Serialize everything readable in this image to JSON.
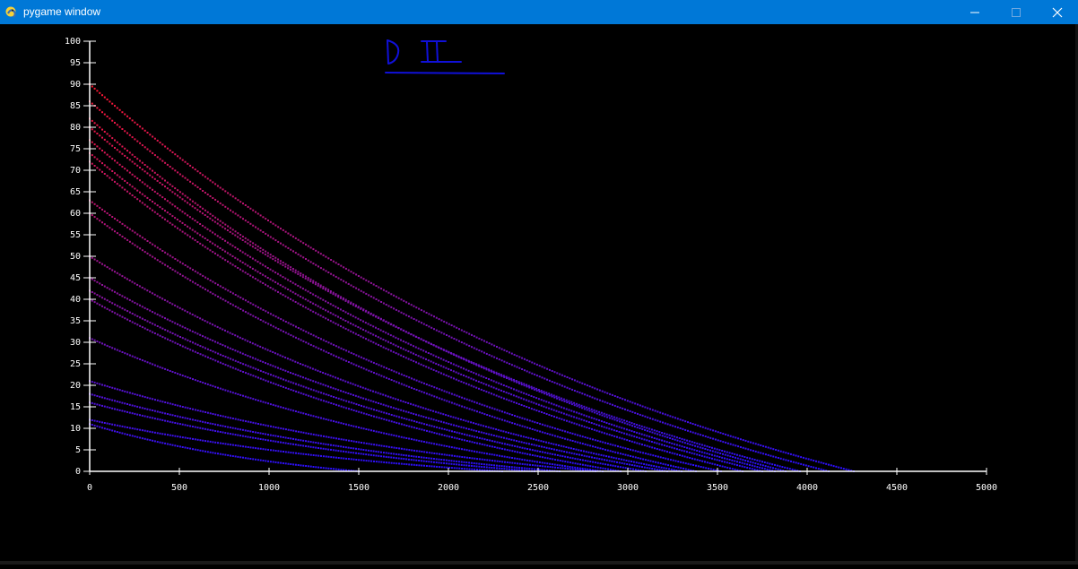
{
  "window": {
    "title": "pygame window",
    "titlebar_color": "#0078d7",
    "icons": [
      "pygame-snake-icon",
      "minimize-icon",
      "maximize-icon",
      "close-icon"
    ]
  },
  "chart_data": {
    "type": "scatter",
    "title": "",
    "xlabel": "",
    "ylabel": "",
    "xlim": [
      0,
      5000
    ],
    "ylim": [
      0,
      100
    ],
    "x_ticks": [
      "0",
      "500",
      "1000",
      "1500",
      "2000",
      "2500",
      "3000",
      "3500",
      "4000",
      "4500",
      "5000"
    ],
    "y_ticks": [
      "0",
      "5",
      "10",
      "15",
      "20",
      "25",
      "30",
      "35",
      "40",
      "45",
      "50",
      "55",
      "60",
      "65",
      "70",
      "75",
      "80",
      "85",
      "90",
      "95",
      "100"
    ],
    "grid": false,
    "axis_color": "#ffffff",
    "background": "#000000",
    "color_low": "#2a10ff",
    "color_high": "#ff1830",
    "series": [
      {
        "y0": 90,
        "x_end": 4260
      },
      {
        "y0": 86,
        "x_end": 4120
      },
      {
        "y0": 82,
        "x_end": 3880
      },
      {
        "y0": 80,
        "x_end": 3960
      },
      {
        "y0": 77,
        "x_end": 3820
      },
      {
        "y0": 74,
        "x_end": 3750
      },
      {
        "y0": 72,
        "x_end": 3640
      },
      {
        "y0": 63,
        "x_end": 3520
      },
      {
        "y0": 60,
        "x_end": 3380
      },
      {
        "y0": 50,
        "x_end": 3300
      },
      {
        "y0": 45,
        "x_end": 3220
      },
      {
        "y0": 42,
        "x_end": 3100
      },
      {
        "y0": 40,
        "x_end": 2960
      },
      {
        "y0": 31,
        "x_end": 2860
      },
      {
        "y0": 21,
        "x_end": 2820
      },
      {
        "y0": 18,
        "x_end": 2620
      },
      {
        "y0": 16,
        "x_end": 2480
      },
      {
        "y0": 12,
        "x_end": 2300
      },
      {
        "y0": 11,
        "x_end": 1500
      }
    ]
  }
}
